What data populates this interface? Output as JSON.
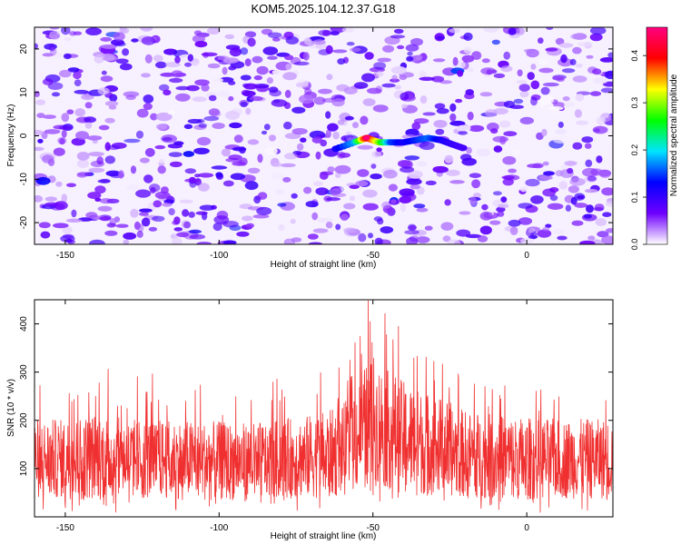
{
  "figure": {
    "title": "KOM5.2025.104.12.37.G18"
  },
  "chart_data": [
    {
      "type": "heatmap",
      "xlabel": "Height of straight line (km)",
      "ylabel": "Frequency (Hz)",
      "xlim": [
        -160,
        28
      ],
      "ylim": [
        -25,
        25
      ],
      "xticks": [
        -150,
        -100,
        -50,
        0
      ],
      "yticks": [
        -20,
        -10,
        0,
        10,
        20
      ],
      "grid": false,
      "colorbar": {
        "label": "Normalized spectral amplitude",
        "range": [
          0.0,
          0.46
        ],
        "ticks": [
          0.0,
          0.1,
          0.2,
          0.3,
          0.4
        ],
        "colormap": [
          "#ffffff",
          "#6f00ff",
          "#0000ff",
          "#00e5ff",
          "#00ff00",
          "#ffff00",
          "#ff0000",
          "#ff0080"
        ]
      },
      "background_amplitude_range": [
        0.0,
        0.1
      ],
      "signal_track": {
        "x": [
          -62,
          -56,
          -52,
          -48,
          -44,
          -40,
          -36,
          -32,
          -28,
          -24,
          -20
        ],
        "y": [
          -3,
          -1.5,
          -0.5,
          -1.5,
          -1.5,
          -1.5,
          -1.0,
          -0.5,
          -1.0,
          -2.0,
          -3.0
        ],
        "amplitude": [
          0.12,
          0.18,
          0.42,
          0.3,
          0.15,
          0.12,
          0.14,
          0.16,
          0.12,
          0.1,
          0.09
        ]
      }
    },
    {
      "type": "line",
      "xlabel": "Height of straight line (km)",
      "ylabel": "SNR (10 * v/v)",
      "xlim": [
        -160,
        28
      ],
      "ylim": [
        0,
        450
      ],
      "xticks": [
        -150,
        -100,
        -50,
        0
      ],
      "yticks": [
        100,
        200,
        300,
        400
      ],
      "color": "#f03030",
      "grid": false,
      "envelope": {
        "x": [
          -160,
          -150,
          -140,
          -130,
          -120,
          -110,
          -100,
          -90,
          -80,
          -70,
          -60,
          -55,
          -52,
          -50,
          -48,
          -45,
          -40,
          -35,
          -30,
          -25,
          -20,
          -10,
          0,
          10,
          20,
          28
        ],
        "max": [
          290,
          305,
          320,
          290,
          300,
          280,
          270,
          260,
          290,
          300,
          320,
          400,
          450,
          450,
          440,
          440,
          380,
          360,
          340,
          320,
          300,
          280,
          270,
          260,
          270,
          260
        ],
        "typical": [
          120,
          120,
          125,
          120,
          120,
          118,
          115,
          115,
          120,
          125,
          135,
          170,
          190,
          200,
          190,
          180,
          165,
          155,
          150,
          140,
          130,
          125,
          120,
          120,
          120,
          120
        ],
        "min": [
          10,
          10,
          5,
          10,
          10,
          10,
          5,
          10,
          10,
          10,
          10,
          15,
          20,
          20,
          20,
          15,
          10,
          10,
          10,
          10,
          10,
          10,
          5,
          10,
          10,
          10
        ]
      }
    }
  ]
}
